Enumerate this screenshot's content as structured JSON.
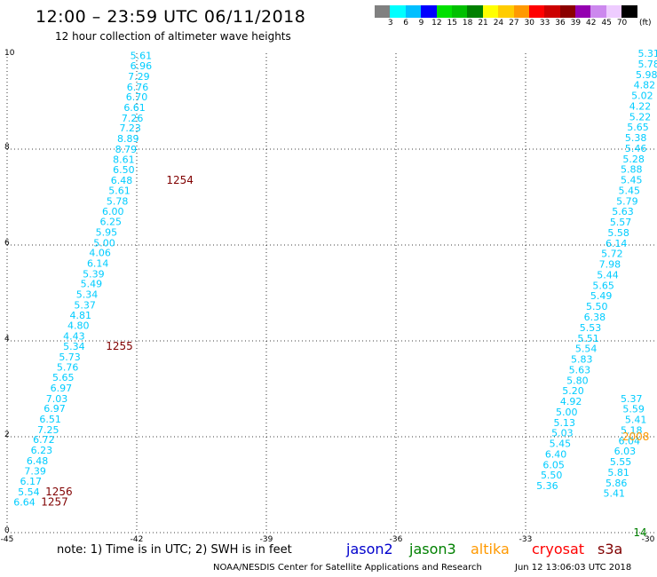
{
  "header": {
    "title": "12:00 – 23:59 UTC 06/11/2018",
    "subtitle": "12 hour collection of altimeter wave heights"
  },
  "legend": {
    "unit": "(ft)",
    "items": [
      {
        "color": "#808080",
        "label": "3"
      },
      {
        "color": "#00ffff",
        "label": "6"
      },
      {
        "color": "#00bfff",
        "label": "9"
      },
      {
        "color": "#0000ff",
        "label": "12"
      },
      {
        "color": "#00e000",
        "label": "15"
      },
      {
        "color": "#00c000",
        "label": "18"
      },
      {
        "color": "#008000",
        "label": "21"
      },
      {
        "color": "#ffff00",
        "label": "24"
      },
      {
        "color": "#ffcc00",
        "label": "27"
      },
      {
        "color": "#ff9900",
        "label": "30"
      },
      {
        "color": "#ff0000",
        "label": "33"
      },
      {
        "color": "#cc0000",
        "label": "36"
      },
      {
        "color": "#8b0000",
        "label": "39"
      },
      {
        "color": "#9400b0",
        "label": "42"
      },
      {
        "color": "#cc88ee",
        "label": "45"
      },
      {
        "color": "#eeccff",
        "label": "70"
      },
      {
        "color": "#000000",
        "label": ""
      }
    ]
  },
  "map": {
    "x_ticks": [
      "-45",
      "-42",
      "-39",
      "-36",
      "-33",
      "-30"
    ],
    "y_ticks": [
      "0",
      "2",
      "4",
      "6",
      "8",
      "10"
    ],
    "x_range": [
      -45,
      -30
    ],
    "y_range": [
      0,
      10
    ],
    "height_color": "#00ccff",
    "time_color": "#800000",
    "jason3_time_color": "#008000",
    "altika_time_color": "#ff9900",
    "track_west": {
      "points": [
        {
          "x": -41.9,
          "y": 9.95,
          "v": "5.61"
        },
        {
          "x": -41.9,
          "y": 9.74,
          "v": "6.96"
        },
        {
          "x": -41.95,
          "y": 9.52,
          "v": "7.29"
        },
        {
          "x": -41.98,
          "y": 9.3,
          "v": "6.76"
        },
        {
          "x": -42.0,
          "y": 9.09,
          "v": "6.70"
        },
        {
          "x": -42.05,
          "y": 8.87,
          "v": "6.61"
        },
        {
          "x": -42.1,
          "y": 8.65,
          "v": "7.26"
        },
        {
          "x": -42.15,
          "y": 8.44,
          "v": "7.23"
        },
        {
          "x": -42.2,
          "y": 8.22,
          "v": "8.89"
        },
        {
          "x": -42.25,
          "y": 8.0,
          "v": "8.79"
        },
        {
          "x": -42.3,
          "y": 7.79,
          "v": "8.61"
        },
        {
          "x": -42.3,
          "y": 7.57,
          "v": "6.50"
        },
        {
          "x": -42.35,
          "y": 7.35,
          "v": "6.48"
        },
        {
          "x": -42.4,
          "y": 7.14,
          "v": "5.61"
        },
        {
          "x": -42.45,
          "y": 6.92,
          "v": "5.78"
        },
        {
          "x": -42.55,
          "y": 6.7,
          "v": "6.00"
        },
        {
          "x": -42.6,
          "y": 6.49,
          "v": "6.25"
        },
        {
          "x": -42.7,
          "y": 6.27,
          "v": "5.95"
        },
        {
          "x": -42.75,
          "y": 6.05,
          "v": "5.00"
        },
        {
          "x": -42.85,
          "y": 5.84,
          "v": "4.06"
        },
        {
          "x": -42.9,
          "y": 5.62,
          "v": "6.14"
        },
        {
          "x": -43.0,
          "y": 5.4,
          "v": "5.39"
        },
        {
          "x": -43.05,
          "y": 5.19,
          "v": "5.49"
        },
        {
          "x": -43.15,
          "y": 4.97,
          "v": "5.34"
        },
        {
          "x": -43.2,
          "y": 4.75,
          "v": "5.37"
        },
        {
          "x": -43.3,
          "y": 4.54,
          "v": "4.81"
        },
        {
          "x": -43.35,
          "y": 4.32,
          "v": "4.80"
        },
        {
          "x": -43.45,
          "y": 4.1,
          "v": "4.43"
        },
        {
          "x": -43.45,
          "y": 3.89,
          "v": "5.34"
        },
        {
          "x": -43.55,
          "y": 3.67,
          "v": "5.73"
        },
        {
          "x": -43.6,
          "y": 3.45,
          "v": "5.76"
        },
        {
          "x": -43.7,
          "y": 3.24,
          "v": "5.65"
        },
        {
          "x": -43.75,
          "y": 3.02,
          "v": "6.97"
        },
        {
          "x": -43.85,
          "y": 2.8,
          "v": "7.03"
        },
        {
          "x": -43.9,
          "y": 2.59,
          "v": "6.97"
        },
        {
          "x": -44.0,
          "y": 2.37,
          "v": "6.51"
        },
        {
          "x": -44.05,
          "y": 2.15,
          "v": "7.25"
        },
        {
          "x": -44.15,
          "y": 1.94,
          "v": "6.72"
        },
        {
          "x": -44.2,
          "y": 1.72,
          "v": "6.23"
        },
        {
          "x": -44.3,
          "y": 1.5,
          "v": "6.48"
        },
        {
          "x": -44.35,
          "y": 1.29,
          "v": "7.39"
        },
        {
          "x": -44.45,
          "y": 1.07,
          "v": "6.17"
        },
        {
          "x": -44.5,
          "y": 0.85,
          "v": "5.54"
        },
        {
          "x": -44.6,
          "y": 0.64,
          "v": "6.64"
        }
      ],
      "times": [
        {
          "x": -41.0,
          "y": 7.35,
          "v": "1254"
        },
        {
          "x": -42.4,
          "y": 3.89,
          "v": "1255"
        },
        {
          "x": -43.8,
          "y": 0.85,
          "v": "1256"
        },
        {
          "x": -43.9,
          "y": 0.64,
          "v": "1257"
        }
      ]
    },
    "track_east": {
      "points": [
        {
          "x": -30.15,
          "y": 10.0,
          "v": "5.31"
        },
        {
          "x": -30.15,
          "y": 9.78,
          "v": "5.78"
        },
        {
          "x": -30.2,
          "y": 9.56,
          "v": "5.98"
        },
        {
          "x": -30.25,
          "y": 9.34,
          "v": "4.82"
        },
        {
          "x": -30.3,
          "y": 9.12,
          "v": "5.02"
        },
        {
          "x": -30.35,
          "y": 8.9,
          "v": "4.22"
        },
        {
          "x": -30.35,
          "y": 8.68,
          "v": "5.22"
        },
        {
          "x": -30.4,
          "y": 8.46,
          "v": "5.65"
        },
        {
          "x": -30.45,
          "y": 8.24,
          "v": "5.38"
        },
        {
          "x": -30.45,
          "y": 8.02,
          "v": "5.46"
        },
        {
          "x": -30.5,
          "y": 7.8,
          "v": "5.28"
        },
        {
          "x": -30.55,
          "y": 7.58,
          "v": "5.88"
        },
        {
          "x": -30.55,
          "y": 7.36,
          "v": "5.45"
        },
        {
          "x": -30.6,
          "y": 7.14,
          "v": "5.45"
        },
        {
          "x": -30.65,
          "y": 6.92,
          "v": "5.79"
        },
        {
          "x": -30.75,
          "y": 6.7,
          "v": "5.63"
        },
        {
          "x": -30.8,
          "y": 6.48,
          "v": "5.57"
        },
        {
          "x": -30.85,
          "y": 6.26,
          "v": "5.58"
        },
        {
          "x": -30.9,
          "y": 6.04,
          "v": "6.14"
        },
        {
          "x": -31.0,
          "y": 5.82,
          "v": "5.72"
        },
        {
          "x": -31.05,
          "y": 5.6,
          "v": "7.98"
        },
        {
          "x": -31.1,
          "y": 5.38,
          "v": "5.44"
        },
        {
          "x": -31.2,
          "y": 5.16,
          "v": "5.65"
        },
        {
          "x": -31.25,
          "y": 4.94,
          "v": "5.49"
        },
        {
          "x": -31.35,
          "y": 4.72,
          "v": "5.50"
        },
        {
          "x": -31.4,
          "y": 4.5,
          "v": "6.38"
        },
        {
          "x": -31.5,
          "y": 4.28,
          "v": "5.53"
        },
        {
          "x": -31.55,
          "y": 4.06,
          "v": "5.51"
        },
        {
          "x": -31.6,
          "y": 3.84,
          "v": "5.54"
        },
        {
          "x": -31.7,
          "y": 3.62,
          "v": "5.83"
        },
        {
          "x": -31.75,
          "y": 3.4,
          "v": "5.63"
        },
        {
          "x": -31.8,
          "y": 3.18,
          "v": "5.80"
        },
        {
          "x": -31.9,
          "y": 2.96,
          "v": "5.20"
        },
        {
          "x": -31.95,
          "y": 2.74,
          "v": "4.92"
        },
        {
          "x": -32.05,
          "y": 2.52,
          "v": "5.00"
        },
        {
          "x": -32.1,
          "y": 2.3,
          "v": "5.13"
        },
        {
          "x": -32.15,
          "y": 2.08,
          "v": "5.03"
        },
        {
          "x": -32.2,
          "y": 1.86,
          "v": "5.45"
        },
        {
          "x": -32.3,
          "y": 1.64,
          "v": "6.40"
        },
        {
          "x": -32.35,
          "y": 1.42,
          "v": "6.05"
        },
        {
          "x": -32.4,
          "y": 1.2,
          "v": "5.50"
        },
        {
          "x": -32.5,
          "y": 0.98,
          "v": "5.36"
        },
        {
          "x": -30.55,
          "y": 2.8,
          "v": "5.37"
        },
        {
          "x": -30.5,
          "y": 2.58,
          "v": "5.59"
        },
        {
          "x": -30.45,
          "y": 2.36,
          "v": "5.41"
        },
        {
          "x": -30.55,
          "y": 2.14,
          "v": "5.18"
        },
        {
          "x": -30.6,
          "y": 1.92,
          "v": "6.04"
        },
        {
          "x": -30.7,
          "y": 1.7,
          "v": "6.03"
        },
        {
          "x": -30.8,
          "y": 1.48,
          "v": "5.55"
        },
        {
          "x": -30.85,
          "y": 1.26,
          "v": "5.81"
        },
        {
          "x": -30.9,
          "y": 1.04,
          "v": "5.86"
        },
        {
          "x": -30.95,
          "y": 0.82,
          "v": "5.41"
        }
      ],
      "times": [
        {
          "x": -30.45,
          "y": 2.0,
          "v": "2008",
          "color": "altika"
        },
        {
          "x": -30.35,
          "y": 0.0,
          "v": "14",
          "color": "jason3"
        }
      ]
    }
  },
  "footer": {
    "note": "note:  1) Time is in UTC;  2) SWH is in feet",
    "satellites": [
      {
        "name": "jason2",
        "color": "#0000cc"
      },
      {
        "name": "jason3",
        "color": "#008000"
      },
      {
        "name": "altika",
        "color": "#ff9900"
      },
      {
        "name": "cryosat",
        "color": "#ff0000"
      },
      {
        "name": "s3a",
        "color": "#800000"
      }
    ],
    "credit": "NOAA/NESDIS Center for Satellite Applications and Research",
    "timestamp": "Jun 12 13:06:03 UTC 2018"
  }
}
